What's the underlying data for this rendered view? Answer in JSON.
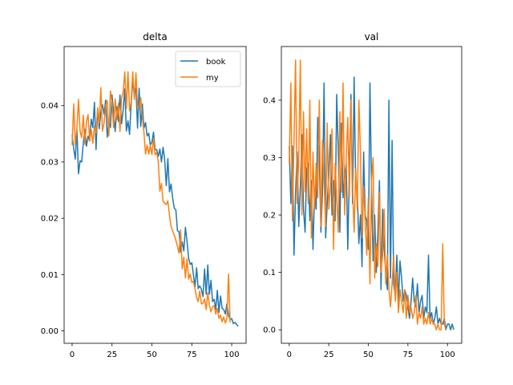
{
  "colors": {
    "book": "#1f77b4",
    "my": "#ff7f0e"
  },
  "chart_data": [
    {
      "type": "line",
      "title": "delta",
      "xlabel": "",
      "ylabel": "",
      "xlim": [
        -5,
        109
      ],
      "ylim": [
        -0.0022,
        0.0505
      ],
      "xticks": [
        0,
        25,
        50,
        75,
        100
      ],
      "xtick_labels": [
        "0",
        "25",
        "50",
        "75",
        "100"
      ],
      "yticks": [
        0.0,
        0.01,
        0.02,
        0.03,
        0.04
      ],
      "ytick_labels": [
        "0.00",
        "0.01",
        "0.02",
        "0.03",
        "0.04"
      ],
      "grid": false,
      "legend": {
        "position": "upper-right",
        "entries": [
          "book",
          "my"
        ]
      },
      "series": [
        {
          "name": "book",
          "color": "#1f77b4",
          "x": [
            0,
            1,
            2,
            3,
            4,
            5,
            6,
            7,
            8,
            9,
            10,
            11,
            12,
            13,
            14,
            15,
            16,
            17,
            18,
            19,
            20,
            21,
            22,
            23,
            24,
            25,
            26,
            27,
            28,
            29,
            30,
            31,
            32,
            33,
            34,
            35,
            36,
            37,
            38,
            39,
            40,
            41,
            42,
            43,
            44,
            45,
            46,
            47,
            48,
            49,
            50,
            51,
            52,
            53,
            54,
            55,
            56,
            57,
            58,
            59,
            60,
            61,
            62,
            63,
            64,
            65,
            66,
            67,
            68,
            69,
            70,
            71,
            72,
            73,
            74,
            75,
            76,
            77,
            78,
            79,
            80,
            81,
            82,
            83,
            84,
            85,
            86,
            87,
            88,
            89,
            90,
            91,
            92,
            93,
            94,
            95,
            96,
            97,
            98,
            99,
            100,
            101,
            102,
            103,
            104
          ],
          "values": [
            0.0348,
            0.0324,
            0.0305,
            0.0358,
            0.0279,
            0.0302,
            0.03,
            0.0333,
            0.0358,
            0.0328,
            0.0346,
            0.0337,
            0.0376,
            0.0361,
            0.0406,
            0.0322,
            0.0396,
            0.0359,
            0.0388,
            0.0402,
            0.0385,
            0.041,
            0.0344,
            0.0372,
            0.0361,
            0.0419,
            0.0388,
            0.0354,
            0.0398,
            0.0372,
            0.0419,
            0.0368,
            0.0393,
            0.043,
            0.0355,
            0.0373,
            0.0349,
            0.0403,
            0.0444,
            0.0421,
            0.0431,
            0.036,
            0.0431,
            0.0363,
            0.0403,
            0.036,
            0.037,
            0.0346,
            0.0351,
            0.033,
            0.0335,
            0.0353,
            0.0322,
            0.0322,
            0.031,
            0.0323,
            0.03,
            0.0326,
            0.0304,
            0.0258,
            0.0306,
            0.0247,
            0.0261,
            0.0236,
            0.0218,
            0.0215,
            0.0178,
            0.0176,
            0.014,
            0.0158,
            0.0142,
            0.0184,
            0.0159,
            0.0129,
            0.0118,
            0.0121,
            0.01,
            0.0078,
            0.0112,
            0.0075,
            0.008,
            0.0074,
            0.0061,
            0.011,
            0.0065,
            0.0117,
            0.0065,
            0.009,
            0.0052,
            0.0056,
            0.0038,
            0.0072,
            0.0033,
            0.0062,
            0.004,
            0.0038,
            0.003,
            0.0048,
            0.0028,
            0.002,
            0.0022,
            0.0013,
            0.0015,
            0.0012,
            0.0008
          ]
        },
        {
          "name": "my",
          "color": "#ff7f0e",
          "x": [
            0,
            1,
            2,
            3,
            4,
            5,
            6,
            7,
            8,
            9,
            10,
            11,
            12,
            13,
            14,
            15,
            16,
            17,
            18,
            19,
            20,
            21,
            22,
            23,
            24,
            25,
            26,
            27,
            28,
            29,
            30,
            31,
            32,
            33,
            34,
            35,
            36,
            37,
            38,
            39,
            40,
            41,
            42,
            43,
            44,
            45,
            46,
            47,
            48,
            49,
            50,
            51,
            52,
            53,
            54,
            55,
            56,
            57,
            58,
            59,
            60,
            61,
            62,
            63,
            64,
            65,
            66,
            67,
            68,
            69,
            70,
            71,
            72,
            73,
            74,
            75,
            76,
            77,
            78,
            79,
            80,
            81,
            82,
            83,
            84,
            85,
            86,
            87,
            88,
            89,
            90,
            91,
            92,
            93,
            94,
            95,
            96,
            97,
            98,
            99
          ],
          "values": [
            0.033,
            0.0403,
            0.033,
            0.036,
            0.0411,
            0.0355,
            0.0343,
            0.0383,
            0.0331,
            0.0371,
            0.0384,
            0.0337,
            0.0357,
            0.0333,
            0.0364,
            0.0351,
            0.0396,
            0.0369,
            0.0432,
            0.0355,
            0.0369,
            0.04,
            0.0409,
            0.0346,
            0.0426,
            0.0405,
            0.0361,
            0.0412,
            0.0376,
            0.0404,
            0.0354,
            0.0414,
            0.0424,
            0.046,
            0.0395,
            0.046,
            0.0391,
            0.0407,
            0.046,
            0.0411,
            0.0458,
            0.0396,
            0.0399,
            0.0414,
            0.038,
            0.0353,
            0.0314,
            0.033,
            0.0314,
            0.033,
            0.0313,
            0.0342,
            0.0313,
            0.0317,
            0.03,
            0.0248,
            0.0262,
            0.023,
            0.0227,
            0.0224,
            0.0231,
            0.0205,
            0.0186,
            0.0177,
            0.017,
            0.0161,
            0.015,
            0.0138,
            0.0179,
            0.011,
            0.0131,
            0.0094,
            0.0128,
            0.0092,
            0.0101,
            0.0086,
            0.0088,
            0.0075,
            0.0059,
            0.0052,
            0.0071,
            0.0048,
            0.0049,
            0.0057,
            0.0038,
            0.0068,
            0.0046,
            0.0034,
            0.0043,
            0.0045,
            0.003,
            0.004,
            0.0022,
            0.0028,
            0.0016,
            0.0025,
            0.0014,
            0.0023,
            0.0101,
            0.0015
          ]
        }
      ]
    },
    {
      "type": "line",
      "title": "val",
      "xlabel": "",
      "ylabel": "",
      "xlim": [
        -5,
        109
      ],
      "ylim": [
        -0.0235,
        0.4935
      ],
      "xticks": [
        0,
        25,
        50,
        75,
        100
      ],
      "xtick_labels": [
        "0",
        "25",
        "50",
        "75",
        "100"
      ],
      "yticks": [
        0.0,
        0.1,
        0.2,
        0.3,
        0.4
      ],
      "ytick_labels": [
        "0.0",
        "0.1",
        "0.2",
        "0.3",
        "0.4"
      ],
      "grid": false,
      "series": [
        {
          "name": "book",
          "color": "#1f77b4",
          "x": [
            0,
            1,
            2,
            3,
            4,
            5,
            6,
            7,
            8,
            9,
            10,
            11,
            12,
            13,
            14,
            15,
            16,
            17,
            18,
            19,
            20,
            21,
            22,
            23,
            24,
            25,
            26,
            27,
            28,
            29,
            30,
            31,
            32,
            33,
            34,
            35,
            36,
            37,
            38,
            39,
            40,
            41,
            42,
            43,
            44,
            45,
            46,
            47,
            48,
            49,
            50,
            51,
            52,
            53,
            54,
            55,
            56,
            57,
            58,
            59,
            60,
            61,
            62,
            63,
            64,
            65,
            66,
            67,
            68,
            69,
            70,
            71,
            72,
            73,
            74,
            75,
            76,
            77,
            78,
            79,
            80,
            81,
            82,
            83,
            84,
            85,
            86,
            87,
            88,
            89,
            90,
            91,
            92,
            93,
            94,
            95,
            96,
            97,
            98,
            99,
            100,
            101,
            102,
            103,
            104
          ],
          "values": [
            0.32,
            0.22,
            0.32,
            0.13,
            0.24,
            0.31,
            0.18,
            0.25,
            0.34,
            0.21,
            0.17,
            0.28,
            0.29,
            0.19,
            0.26,
            0.14,
            0.24,
            0.21,
            0.37,
            0.3,
            0.17,
            0.24,
            0.43,
            0.16,
            0.22,
            0.27,
            0.34,
            0.2,
            0.26,
            0.19,
            0.41,
            0.31,
            0.17,
            0.36,
            0.23,
            0.27,
            0.29,
            0.14,
            0.28,
            0.41,
            0.22,
            0.44,
            0.25,
            0.24,
            0.15,
            0.2,
            0.11,
            0.31,
            0.2,
            0.19,
            0.14,
            0.43,
            0.25,
            0.12,
            0.2,
            0.1,
            0.17,
            0.26,
            0.07,
            0.21,
            0.14,
            0.1,
            0.07,
            0.4,
            0.09,
            0.33,
            0.08,
            0.06,
            0.13,
            0.05,
            0.12,
            0.09,
            0.05,
            0.07,
            0.06,
            0.04,
            0.02,
            0.05,
            0.09,
            0.05,
            0.04,
            0.08,
            0.03,
            0.05,
            0.06,
            0.02,
            0.04,
            0.03,
            0.13,
            0.02,
            0.03,
            0.01,
            0.02,
            0.04,
            0.01,
            0.02,
            0.01,
            0.01,
            0.02,
            0.0,
            0.01,
            0.01,
            0.0,
            0.01,
            0.0
          ]
        },
        {
          "name": "my",
          "color": "#ff7f0e",
          "x": [
            0,
            1,
            2,
            3,
            4,
            5,
            6,
            7,
            8,
            9,
            10,
            11,
            12,
            13,
            14,
            15,
            16,
            17,
            18,
            19,
            20,
            21,
            22,
            23,
            24,
            25,
            26,
            27,
            28,
            29,
            30,
            31,
            32,
            33,
            34,
            35,
            36,
            37,
            38,
            39,
            40,
            41,
            42,
            43,
            44,
            45,
            46,
            47,
            48,
            49,
            50,
            51,
            52,
            53,
            54,
            55,
            56,
            57,
            58,
            59,
            60,
            61,
            62,
            63,
            64,
            65,
            66,
            67,
            68,
            69,
            70,
            71,
            72,
            73,
            74,
            75,
            76,
            77,
            78,
            79,
            80,
            81,
            82,
            83,
            84,
            85,
            86,
            87,
            88,
            89,
            90,
            91,
            92,
            93,
            94,
            95,
            96,
            97,
            98,
            99
          ],
          "values": [
            0.29,
            0.43,
            0.19,
            0.33,
            0.47,
            0.22,
            0.3,
            0.47,
            0.2,
            0.38,
            0.24,
            0.35,
            0.22,
            0.4,
            0.16,
            0.31,
            0.21,
            0.29,
            0.23,
            0.4,
            0.18,
            0.33,
            0.26,
            0.18,
            0.36,
            0.21,
            0.25,
            0.35,
            0.14,
            0.29,
            0.23,
            0.17,
            0.38,
            0.24,
            0.43,
            0.2,
            0.3,
            0.37,
            0.23,
            0.4,
            0.25,
            0.17,
            0.28,
            0.21,
            0.4,
            0.31,
            0.16,
            0.25,
            0.19,
            0.13,
            0.23,
            0.08,
            0.26,
            0.3,
            0.09,
            0.15,
            0.11,
            0.24,
            0.1,
            0.13,
            0.21,
            0.08,
            0.13,
            0.07,
            0.04,
            0.08,
            0.13,
            0.05,
            0.1,
            0.03,
            0.07,
            0.05,
            0.03,
            0.07,
            0.02,
            0.06,
            0.03,
            0.04,
            0.02,
            0.03,
            0.06,
            0.01,
            0.03,
            0.02,
            0.04,
            0.01,
            0.02,
            0.01,
            0.03,
            0.01,
            0.02,
            0.01,
            0.01,
            0.0,
            0.01,
            0.0,
            0.0,
            0.15,
            0.01,
            0.0
          ]
        }
      ]
    }
  ]
}
